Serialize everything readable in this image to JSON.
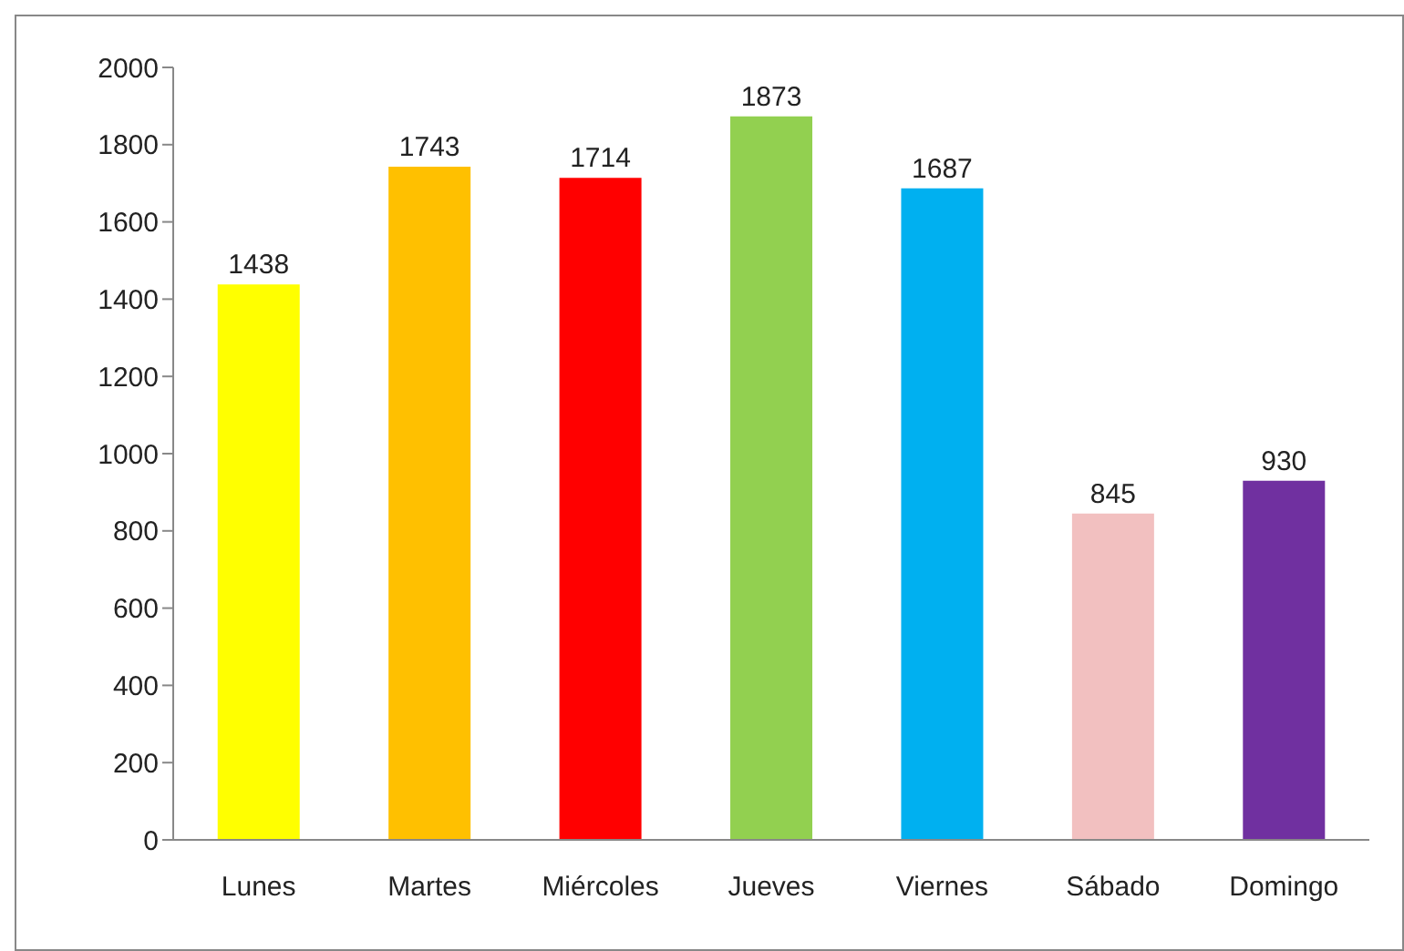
{
  "chart_data": {
    "type": "bar",
    "categories": [
      "Lunes",
      "Martes",
      "Miércoles",
      "Jueves",
      "Viernes",
      "Sábado",
      "Domingo"
    ],
    "values": [
      1438,
      1743,
      1714,
      1873,
      1687,
      845,
      930
    ],
    "colors": [
      "#ffff00",
      "#ffc000",
      "#ff0000",
      "#92d050",
      "#00b0f0",
      "#f2c0c0",
      "#7030a0"
    ],
    "ylim": [
      0,
      2000
    ],
    "yticks": [
      0,
      200,
      400,
      600,
      800,
      1000,
      1200,
      1400,
      1600,
      1800,
      2000
    ],
    "grid": false,
    "data_labels": true
  }
}
